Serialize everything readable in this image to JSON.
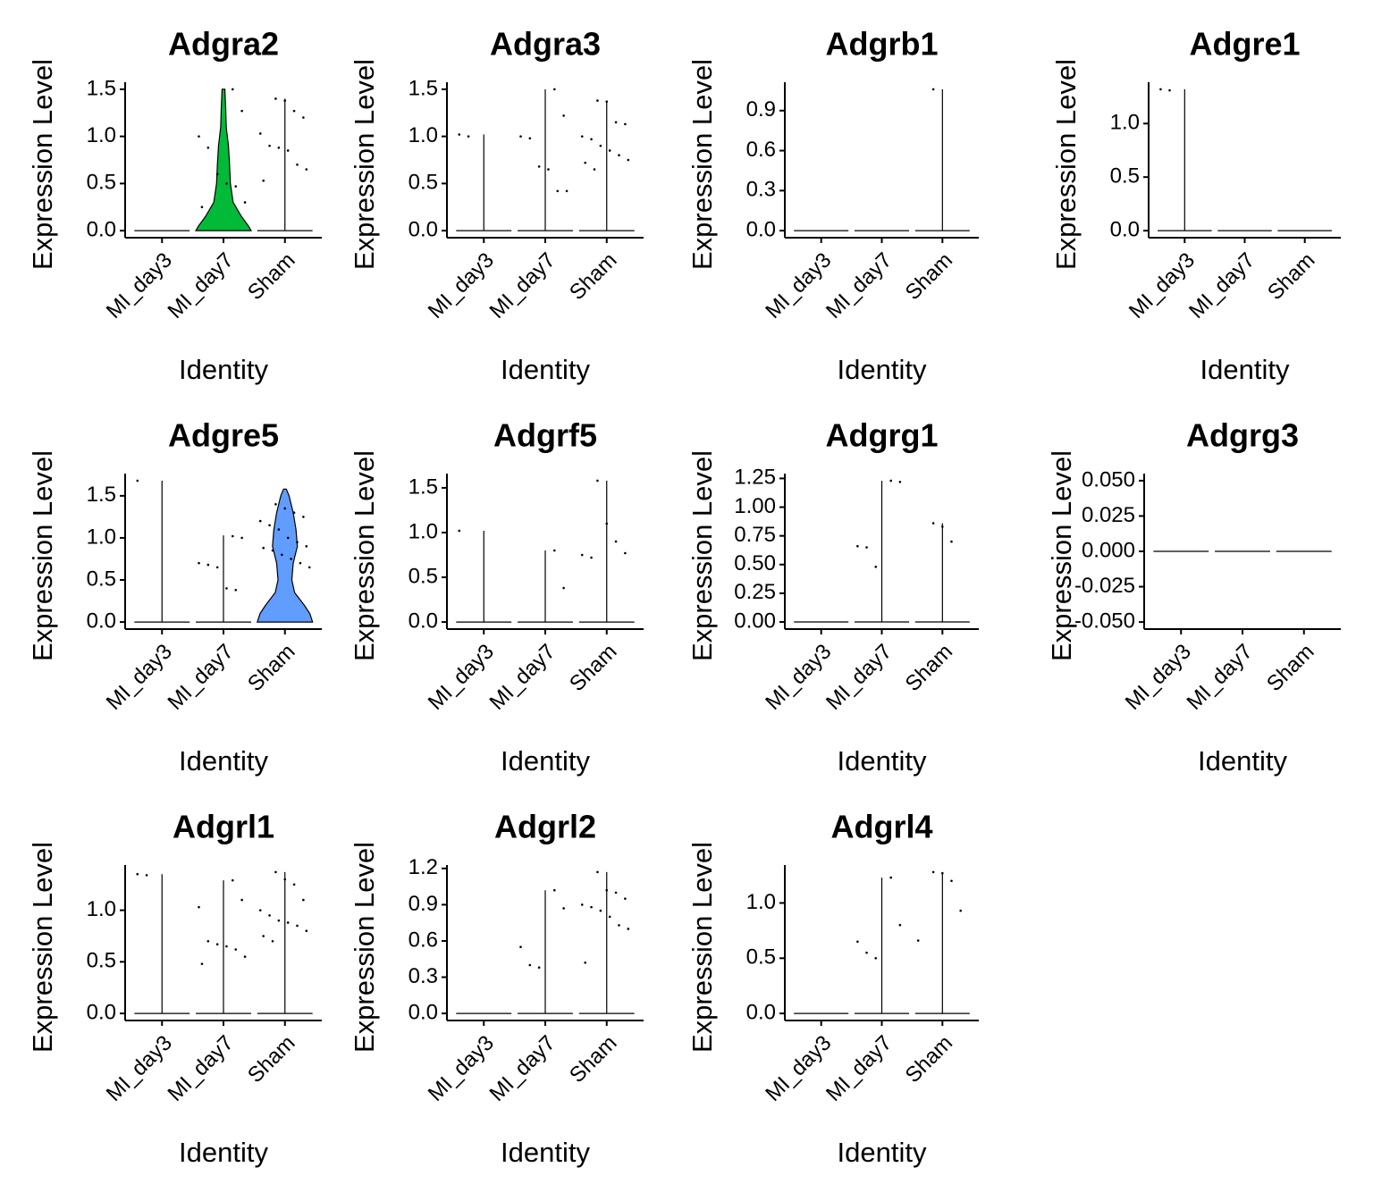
{
  "chart_data": [
    {
      "type": "violin",
      "title": "Adgra2",
      "xlabel": "Identity",
      "ylabel": "Expression Level",
      "categories": [
        "MI_day3",
        "MI_day7",
        "Sham"
      ],
      "colors": [
        "#F8766D",
        "#00BA38",
        "#619CFF"
      ],
      "max": [
        0,
        1.5,
        1.4
      ],
      "profiles": [
        null,
        {
          "y": [
            0,
            0.05,
            0.15,
            0.3,
            0.5,
            0.7,
            0.9,
            1.1,
            1.3,
            1.5
          ],
          "w": [
            1,
            0.9,
            0.65,
            0.35,
            0.25,
            0.22,
            0.18,
            0.1,
            0.08,
            0.05
          ]
        },
        null
      ],
      "points": [
        [],
        [
          1.5,
          1.27,
          1.0,
          0.88,
          0.6,
          0.5,
          0.47,
          0.3,
          0.25
        ],
        [
          1.4,
          1.38,
          1.27,
          1.2,
          1.03,
          0.9,
          0.88,
          0.85,
          0.7,
          0.65,
          0.53
        ]
      ],
      "ylim": [
        -0.075,
        1.575
      ],
      "yticks": [
        {
          "value": 0,
          "label": "0.0"
        },
        0.5,
        {
          "value": 1,
          "label": "1.0"
        },
        1.5
      ]
    },
    {
      "type": "violin",
      "title": "Adgra3",
      "xlabel": "Identity",
      "ylabel": "Expression Level",
      "categories": [
        "MI_day3",
        "MI_day7",
        "Sham"
      ],
      "colors": [
        "#F8766D",
        "#00BA38",
        "#619CFF"
      ],
      "max": [
        1.02,
        1.5,
        1.38
      ],
      "profiles": [
        null,
        null,
        null
      ],
      "points": [
        [
          1.02,
          1.0
        ],
        [
          1.5,
          1.22,
          1.0,
          0.98,
          0.68,
          0.65,
          0.42,
          0.42
        ],
        [
          1.38,
          1.37,
          1.15,
          1.13,
          1.0,
          0.97,
          0.9,
          0.85,
          0.8,
          0.75,
          0.72,
          0.65
        ]
      ],
      "ylim": [
        -0.075,
        1.575
      ],
      "yticks": [
        {
          "value": 0,
          "label": "0.0"
        },
        0.5,
        {
          "value": 1,
          "label": "1.0"
        },
        1.5
      ]
    },
    {
      "type": "violin",
      "title": "Adgrb1",
      "xlabel": "Identity",
      "ylabel": "Expression Level",
      "categories": [
        "MI_day3",
        "MI_day7",
        "Sham"
      ],
      "colors": [
        "#F8766D",
        "#00BA38",
        "#619CFF"
      ],
      "max": [
        0,
        0,
        1.06
      ],
      "profiles": [
        null,
        null,
        null
      ],
      "points": [
        [],
        [],
        [
          1.06
        ]
      ],
      "ylim": [
        -0.053,
        1.113
      ],
      "yticks": [
        {
          "value": 0,
          "label": "0.0"
        },
        0.3,
        0.6,
        0.9
      ]
    },
    {
      "type": "violin",
      "title": "Adgre1",
      "xlabel": "Identity",
      "ylabel": "Expression Level",
      "categories": [
        "MI_day3",
        "MI_day7",
        "Sham"
      ],
      "colors": [
        "#F8766D",
        "#00BA38",
        "#619CFF"
      ],
      "max": [
        1.32,
        0,
        0
      ],
      "profiles": [
        null,
        null,
        null
      ],
      "points": [
        [
          1.32,
          1.31
        ],
        [],
        []
      ],
      "ylim": [
        -0.066,
        1.386
      ],
      "yticks": [
        {
          "value": 0,
          "label": "0.0"
        },
        0.5,
        {
          "value": 1,
          "label": "1.0"
        }
      ]
    },
    {
      "type": "violin",
      "title": "Adgre5",
      "xlabel": "Identity",
      "ylabel": "Expression Level",
      "categories": [
        "MI_day3",
        "MI_day7",
        "Sham"
      ],
      "colors": [
        "#F8766D",
        "#00BA38",
        "#619CFF"
      ],
      "max": [
        1.68,
        1.03,
        1.58
      ],
      "profiles": [
        null,
        null,
        {
          "y": [
            0,
            0.1,
            0.2,
            0.35,
            0.5,
            0.7,
            0.9,
            1.1,
            1.3,
            1.5,
            1.58
          ],
          "w": [
            1,
            0.9,
            0.7,
            0.35,
            0.25,
            0.3,
            0.45,
            0.4,
            0.3,
            0.15,
            0.05
          ]
        }
      ],
      "points": [
        [
          1.68
        ],
        [
          1.02,
          1.0,
          0.7,
          0.68,
          0.65,
          0.4,
          0.38
        ],
        [
          1.4,
          1.35,
          1.3,
          1.25,
          1.2,
          1.15,
          1.1,
          1.0,
          0.95,
          0.9,
          0.88,
          0.85,
          0.8,
          0.75,
          0.7,
          0.65
        ]
      ],
      "ylim": [
        -0.084,
        1.764
      ],
      "yticks": [
        {
          "value": 0,
          "label": "0.0"
        },
        0.5,
        {
          "value": 1,
          "label": "1.0"
        },
        1.5
      ]
    },
    {
      "type": "violin",
      "title": "Adgrf5",
      "xlabel": "Identity",
      "ylabel": "Expression Level",
      "categories": [
        "MI_day3",
        "MI_day7",
        "Sham"
      ],
      "colors": [
        "#F8766D",
        "#00BA38",
        "#619CFF"
      ],
      "max": [
        1.02,
        0.8,
        1.58
      ],
      "profiles": [
        null,
        null,
        null
      ],
      "points": [
        [
          1.02
        ],
        [
          0.8,
          0.38
        ],
        [
          1.58,
          1.1,
          0.9,
          0.77,
          0.75,
          0.72
        ]
      ],
      "ylim": [
        -0.079,
        1.659
      ],
      "yticks": [
        {
          "value": 0,
          "label": "0.0"
        },
        0.5,
        {
          "value": 1,
          "label": "1.0"
        },
        1.5
      ]
    },
    {
      "type": "violin",
      "title": "Adgrg1",
      "xlabel": "Identity",
      "ylabel": "Expression Level",
      "categories": [
        "MI_day3",
        "MI_day7",
        "Sham"
      ],
      "colors": [
        "#F8766D",
        "#00BA38",
        "#619CFF"
      ],
      "max": [
        0,
        1.23,
        0.86
      ],
      "profiles": [
        null,
        null,
        null
      ],
      "points": [
        [],
        [
          1.23,
          1.22,
          0.66,
          0.65,
          0.48
        ],
        [
          0.86,
          0.83,
          0.7
        ]
      ],
      "ylim": [
        -0.062,
        1.292
      ],
      "yticks": [
        {
          "value": 0,
          "label": "0.00"
        },
        0.25,
        {
          "value": 0.5,
          "label": "0.50"
        },
        0.75,
        {
          "value": 1,
          "label": "1.00"
        },
        1.25
      ]
    },
    {
      "type": "violin",
      "title": "Adgrg3",
      "xlabel": "Identity",
      "ylabel": "Expression Level",
      "categories": [
        "MI_day3",
        "MI_day7",
        "Sham"
      ],
      "colors": [
        "#F8766D",
        "#00BA38",
        "#619CFF"
      ],
      "max": [
        0,
        0,
        0
      ],
      "profiles": [
        null,
        null,
        null
      ],
      "points": [
        [],
        [],
        []
      ],
      "ylim": [
        -0.055,
        0.055
      ],
      "yticks": [
        {
          "value": -0.05,
          "label": "-0.050"
        },
        -0.025,
        {
          "value": 0,
          "label": "0.000"
        },
        0.025,
        {
          "value": 0.05,
          "label": "0.050"
        }
      ]
    },
    {
      "type": "violin",
      "title": "Adgrl1",
      "xlabel": "Identity",
      "ylabel": "Expression Level",
      "categories": [
        "MI_day3",
        "MI_day7",
        "Sham"
      ],
      "colors": [
        "#F8766D",
        "#00BA38",
        "#619CFF"
      ],
      "max": [
        1.35,
        1.29,
        1.37
      ],
      "profiles": [
        null,
        null,
        null
      ],
      "points": [
        [
          1.35,
          1.34
        ],
        [
          1.29,
          1.1,
          1.03,
          0.7,
          0.67,
          0.65,
          0.62,
          0.55,
          0.48
        ],
        [
          1.37,
          1.3,
          1.25,
          1.1,
          1.0,
          0.95,
          0.9,
          0.88,
          0.85,
          0.8,
          0.75,
          0.7
        ]
      ],
      "ylim": [
        -0.0685,
        1.4385
      ],
      "yticks": [
        {
          "value": 0,
          "label": "0.0"
        },
        0.5,
        {
          "value": 1,
          "label": "1.0"
        }
      ]
    },
    {
      "type": "violin",
      "title": "Adgrl2",
      "xlabel": "Identity",
      "ylabel": "Expression Level",
      "categories": [
        "MI_day3",
        "MI_day7",
        "Sham"
      ],
      "colors": [
        "#F8766D",
        "#00BA38",
        "#619CFF"
      ],
      "max": [
        0,
        1.02,
        1.17
      ],
      "profiles": [
        null,
        null,
        null
      ],
      "points": [
        [],
        [
          1.02,
          0.87,
          0.55,
          0.4,
          0.38
        ],
        [
          1.17,
          1.02,
          1.0,
          0.95,
          0.9,
          0.88,
          0.85,
          0.8,
          0.73,
          0.7,
          0.42
        ]
      ],
      "ylim": [
        -0.0585,
        1.2285
      ],
      "yticks": [
        {
          "value": 0,
          "label": "0.0"
        },
        0.3,
        0.6,
        0.9,
        1.2
      ]
    },
    {
      "type": "violin",
      "title": "Adgrl4",
      "xlabel": "Identity",
      "ylabel": "Expression Level",
      "categories": [
        "MI_day3",
        "MI_day7",
        "Sham"
      ],
      "colors": [
        "#F8766D",
        "#00BA38",
        "#619CFF"
      ],
      "max": [
        0,
        1.23,
        1.28
      ],
      "profiles": [
        null,
        null,
        null
      ],
      "points": [
        [],
        [
          1.23,
          0.8,
          0.65,
          0.55,
          0.5
        ],
        [
          1.28,
          1.27,
          1.2,
          0.93,
          0.66
        ]
      ],
      "ylim": [
        -0.064,
        1.344
      ],
      "yticks": [
        {
          "value": 0,
          "label": "0.0"
        },
        0.5,
        {
          "value": 1,
          "label": "1.0"
        }
      ]
    }
  ]
}
